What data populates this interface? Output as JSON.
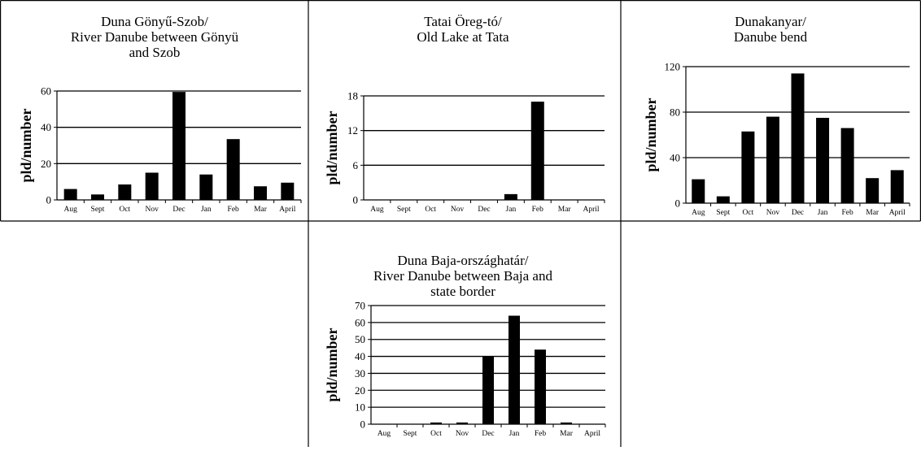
{
  "chart_data": [
    {
      "type": "bar",
      "title_lines": [
        "Duna Gönyű-Szob/",
        "River Danube between Gönyü",
        "and Szob"
      ],
      "ylabel": "pld/number",
      "xlabel": "",
      "categories": [
        "Aug",
        "Sept",
        "Oct",
        "Nov",
        "Dec",
        "Jan",
        "Feb",
        "Mar",
        "April"
      ],
      "values": [
        6,
        3,
        8.5,
        15,
        59.5,
        14,
        33.5,
        7.5,
        9.5
      ],
      "ylim": [
        0,
        60
      ],
      "yticks": [
        0,
        20,
        40,
        60
      ],
      "grid": true
    },
    {
      "type": "bar",
      "title_lines": [
        "Tatai Öreg-tó/",
        "Old Lake at Tata"
      ],
      "ylabel": "pld/number",
      "xlabel": "",
      "categories": [
        "Aug",
        "Sept",
        "Oct",
        "Nov",
        "Dec",
        "Jan",
        "Feb",
        "Mar",
        "April"
      ],
      "values": [
        0,
        0,
        0,
        0,
        0,
        1,
        17,
        0,
        0
      ],
      "ylim": [
        0,
        18
      ],
      "yticks": [
        0,
        6,
        12,
        18
      ],
      "grid": true
    },
    {
      "type": "bar",
      "title_lines": [
        "Dunakanyar/",
        "Danube bend"
      ],
      "ylabel": "pld/number",
      "xlabel": "",
      "categories": [
        "Aug",
        "Sept",
        "Oct",
        "Nov",
        "Dec",
        "Jan",
        "Feb",
        "Mar",
        "April"
      ],
      "values": [
        21,
        6,
        63,
        76,
        114,
        75,
        66,
        22,
        29
      ],
      "ylim": [
        0,
        120
      ],
      "yticks": [
        0,
        40,
        80,
        120
      ],
      "grid": true
    },
    {
      "type": "bar",
      "title_lines": [
        "Duna Baja-országhatár/",
        "River Danube between Baja and",
        "state border"
      ],
      "ylabel": "pld/number",
      "xlabel": "",
      "categories": [
        "Aug",
        "Sept",
        "Oct",
        "Nov",
        "Dec",
        "Jan",
        "Feb",
        "Mar",
        "April"
      ],
      "values": [
        0,
        0,
        1,
        1,
        40,
        64,
        44,
        1,
        0
      ],
      "ylim": [
        0,
        70
      ],
      "yticks": [
        0,
        10,
        20,
        30,
        40,
        50,
        60,
        70
      ],
      "grid": true
    }
  ],
  "colors": {
    "bar": "#000000",
    "grid": "#000000",
    "border": "#000000"
  }
}
